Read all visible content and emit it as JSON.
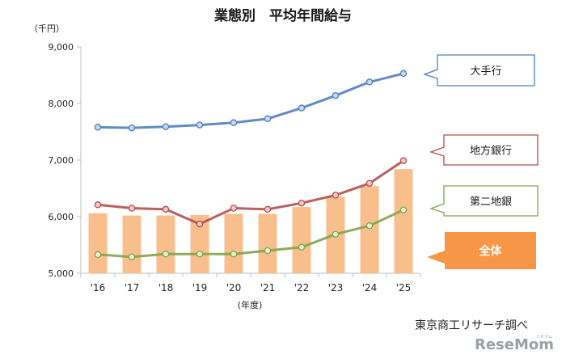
{
  "chart_data": {
    "type": "bar+line",
    "title": "業態別　平均年間給与",
    "unit_label": "（千円）",
    "x_unit_label": "(年度)",
    "categories": [
      "'16",
      "'17",
      "'18",
      "'19",
      "'20",
      "'21",
      "'22",
      "'23",
      "'24",
      "'25"
    ],
    "yticks": [
      "9,000",
      "8,000",
      "7,000",
      "6,000",
      "5,000"
    ],
    "ylim": [
      5000,
      9000
    ],
    "grid": false,
    "bar_series": {
      "name": "全体",
      "color": "#f8bf8c",
      "values": [
        6060,
        6020,
        6020,
        6030,
        6050,
        6050,
        6170,
        6350,
        6540,
        6840
      ]
    },
    "line_series": [
      {
        "name": "大手行",
        "color": "#4f7fbf",
        "marker_fill": "#c9d9f2",
        "values": [
          7580,
          7570,
          7590,
          7620,
          7660,
          7730,
          7920,
          8140,
          8380,
          8530
        ]
      },
      {
        "name": "地方銀行",
        "color": "#b24f4d",
        "marker_fill": "#f3c9c9",
        "values": [
          6210,
          6150,
          6130,
          5870,
          6150,
          6130,
          6240,
          6380,
          6590,
          6990
        ]
      },
      {
        "name": "第二地銀",
        "color": "#80a34f",
        "marker_fill": "#e9f1cf",
        "values": [
          5330,
          5290,
          5340,
          5340,
          5340,
          5400,
          5460,
          5690,
          5840,
          6120
        ]
      }
    ],
    "callouts": [
      {
        "label": "大手行",
        "series_color": "#4f7fbf"
      },
      {
        "label": "地方銀行",
        "series_color": "#b24f4d"
      },
      {
        "label": "第二地銀",
        "series_color": "#80a34f"
      },
      {
        "label": "全体",
        "fill": "#f79646"
      }
    ],
    "source": "東京商工リサーチ調べ"
  },
  "watermark": {
    "text": "ReseMom",
    "sub": "リセマム"
  }
}
